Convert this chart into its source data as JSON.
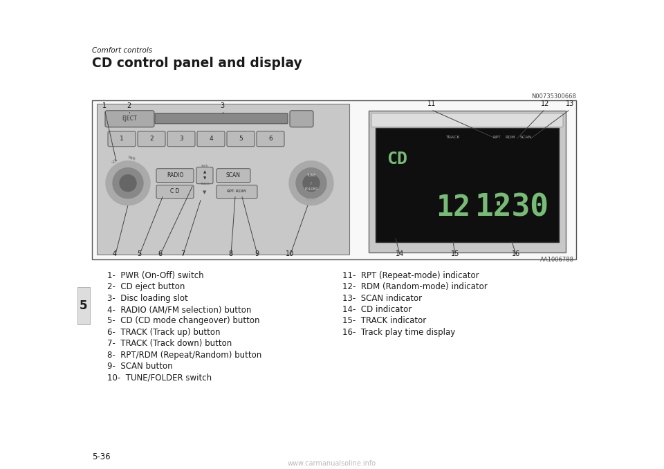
{
  "bg_color": "#ffffff",
  "header_text": "Comfort controls",
  "title_text": "CD control panel and display",
  "ref_code": "N00735300668",
  "image_ref": "AA1006788",
  "tab_number": "5",
  "page_number": "5-36",
  "left_items": [
    "1-  PWR (On-Off) switch",
    "2-  CD eject button",
    "3-  Disc loading slot",
    "4-  RADIO (AM/FM selection) button",
    "5-  CD (CD mode changeover) button",
    "6-  TRACK (Track up) button",
    "7-  TRACK (Track down) button",
    "8-  RPT/RDM (Repeat/Random) button",
    "9-  SCAN button",
    "10-  TUNE/FOLDER switch"
  ],
  "right_items": [
    "11-  RPT (Repeat-mode) indicator",
    "12-  RDM (Random-mode) indicator",
    "13-  SCAN indicator",
    "14-  CD indicator",
    "15-  TRACK indicator",
    "16-  Track play time display"
  ],
  "text_color": "#1a1a1a",
  "panel_color": "#c8c8c8",
  "button_color": "#b8b8b8",
  "knob_outer": "#aaaaaa",
  "knob_inner": "#888888",
  "display_bg": "#111111",
  "display_text": "#88cc88",
  "slot_color": "#777777",
  "watermark": "www.carmanualsoline.info"
}
